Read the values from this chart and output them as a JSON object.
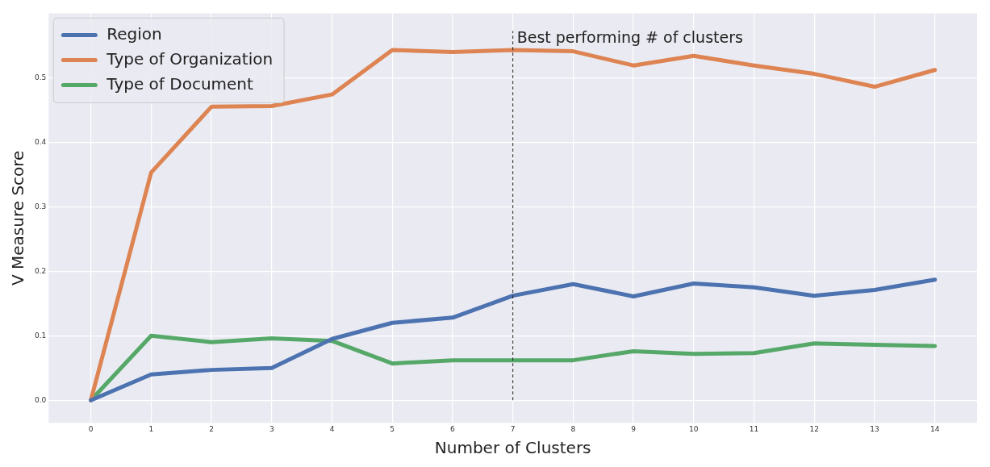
{
  "chart_data": {
    "type": "line",
    "xlabel": "Number of Clusters",
    "ylabel": "V Measure Score",
    "x": [
      0,
      1,
      2,
      3,
      4,
      5,
      6,
      7,
      8,
      9,
      10,
      11,
      12,
      13,
      14
    ],
    "series": [
      {
        "name": "Region",
        "color": "#4c72b0",
        "values": [
          0,
          0.04,
          0.047,
          0.05,
          0.095,
          0.12,
          0.128,
          0.162,
          0.18,
          0.161,
          0.181,
          0.175,
          0.162,
          0.171,
          0.187
        ]
      },
      {
        "name": "Type of Organization",
        "color": "#dd8452",
        "values": [
          0,
          0.353,
          0.455,
          0.456,
          0.474,
          0.543,
          0.54,
          0.543,
          0.541,
          0.519,
          0.534,
          0.519,
          0.506,
          0.486,
          0.512
        ]
      },
      {
        "name": "Type of Document",
        "color": "#55a868",
        "values": [
          0,
          0.1,
          0.09,
          0.096,
          0.092,
          0.057,
          0.062,
          0.062,
          0.062,
          0.076,
          0.072,
          0.073,
          0.088,
          0.086,
          0.084
        ]
      }
    ],
    "xlim": [
      -0.7,
      14.7
    ],
    "xticks": [
      0,
      1,
      2,
      3,
      4,
      5,
      6,
      7,
      8,
      9,
      10,
      11,
      12,
      13,
      14
    ],
    "ylim": [
      -0.035,
      0.6
    ],
    "yticks": [
      {
        "value": 0,
        "label": "0.0"
      },
      {
        "value": 0.1,
        "label": "0.1"
      },
      {
        "value": 0.2,
        "label": "0.2"
      },
      {
        "value": 0.3,
        "label": "0.3"
      },
      {
        "value": 0.4,
        "label": "0.4"
      },
      {
        "value": 0.5,
        "label": "0.5"
      }
    ],
    "ref_lines": [
      {
        "axis": "x",
        "value": 7,
        "label": "Best performing # of clusters",
        "color": "#222222",
        "line_style": "dashed"
      }
    ],
    "grid": true,
    "legend": "top left",
    "marker": "none",
    "line_style": "solid"
  }
}
